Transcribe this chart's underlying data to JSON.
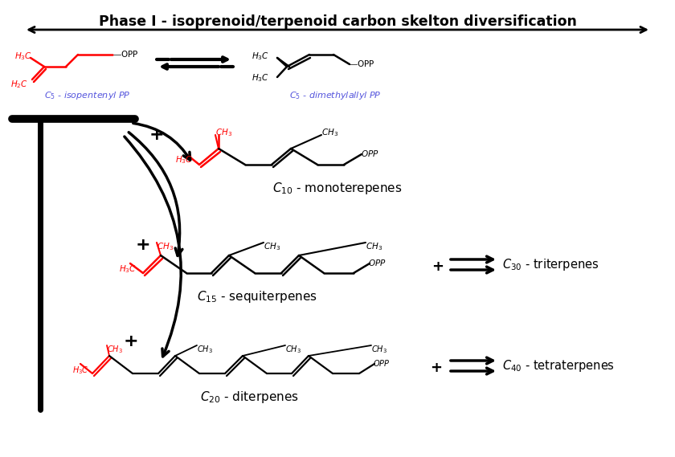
{
  "title": "Phase I - isoprenoid/terpenoid carbon skelton diversification",
  "title_fontsize": 12.5,
  "bg_color": "#ffffff",
  "figsize": [
    8.4,
    5.69
  ],
  "dpi": 100
}
